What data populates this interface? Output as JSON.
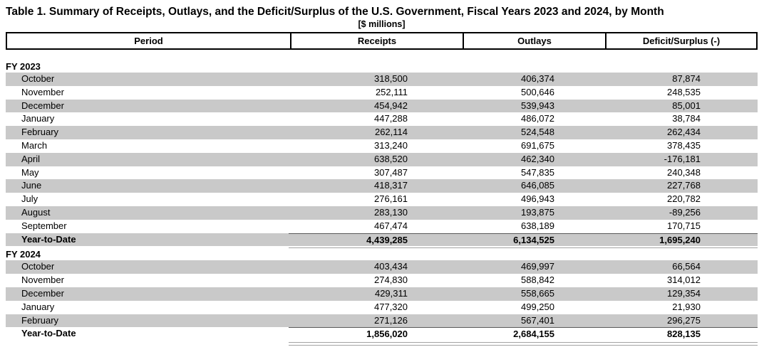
{
  "title": "Table 1. Summary of Receipts, Outlays, and the Deficit/Surplus of the U.S. Government, Fiscal Years 2023 and 2024, by Month",
  "subtitle": "[$ millions]",
  "columns": [
    "Period",
    "Receipts",
    "Outlays",
    "Deficit/Surplus (-)"
  ],
  "colors": {
    "row_stripe": "#c9c9c9",
    "header_border": "#000000",
    "total_rule": "#595959"
  },
  "sections": [
    {
      "label": "FY 2023",
      "rows": [
        {
          "period": "October",
          "receipts": "318,500",
          "outlays": "406,374",
          "deficit": "87,874"
        },
        {
          "period": "November",
          "receipts": "252,111",
          "outlays": "500,646",
          "deficit": "248,535"
        },
        {
          "period": "December",
          "receipts": "454,942",
          "outlays": "539,943",
          "deficit": "85,001"
        },
        {
          "period": "January",
          "receipts": "447,288",
          "outlays": "486,072",
          "deficit": "38,784"
        },
        {
          "period": "February",
          "receipts": "262,114",
          "outlays": "524,548",
          "deficit": "262,434"
        },
        {
          "period": "March",
          "receipts": "313,240",
          "outlays": "691,675",
          "deficit": "378,435"
        },
        {
          "period": "April",
          "receipts": "638,520",
          "outlays": "462,340",
          "deficit": "-176,181"
        },
        {
          "period": "May",
          "receipts": "307,487",
          "outlays": "547,835",
          "deficit": "240,348"
        },
        {
          "period": "June",
          "receipts": "418,317",
          "outlays": "646,085",
          "deficit": "227,768"
        },
        {
          "period": "July",
          "receipts": "276,161",
          "outlays": "496,943",
          "deficit": "220,782"
        },
        {
          "period": "August",
          "receipts": "283,130",
          "outlays": "193,875",
          "deficit": "-89,256"
        },
        {
          "period": "September",
          "receipts": "467,474",
          "outlays": "638,189",
          "deficit": "170,715"
        },
        {
          "period": "Year-to-Date",
          "receipts": "4,439,285",
          "outlays": "6,134,525",
          "deficit": "1,695,240",
          "is_total": true
        }
      ]
    },
    {
      "label": "FY 2024",
      "rows": [
        {
          "period": "October",
          "receipts": "403,434",
          "outlays": "469,997",
          "deficit": "66,564"
        },
        {
          "period": "November",
          "receipts": "274,830",
          "outlays": "588,842",
          "deficit": "314,012"
        },
        {
          "period": "December",
          "receipts": "429,311",
          "outlays": "558,665",
          "deficit": "129,354"
        },
        {
          "period": "January",
          "receipts": "477,320",
          "outlays": "499,250",
          "deficit": "21,930"
        },
        {
          "period": "February",
          "receipts": "271,126",
          "outlays": "567,401",
          "deficit": "296,275"
        },
        {
          "period": "Year-to-Date",
          "receipts": "1,856,020",
          "outlays": "2,684,155",
          "deficit": "828,135",
          "is_total": true
        }
      ]
    }
  ]
}
